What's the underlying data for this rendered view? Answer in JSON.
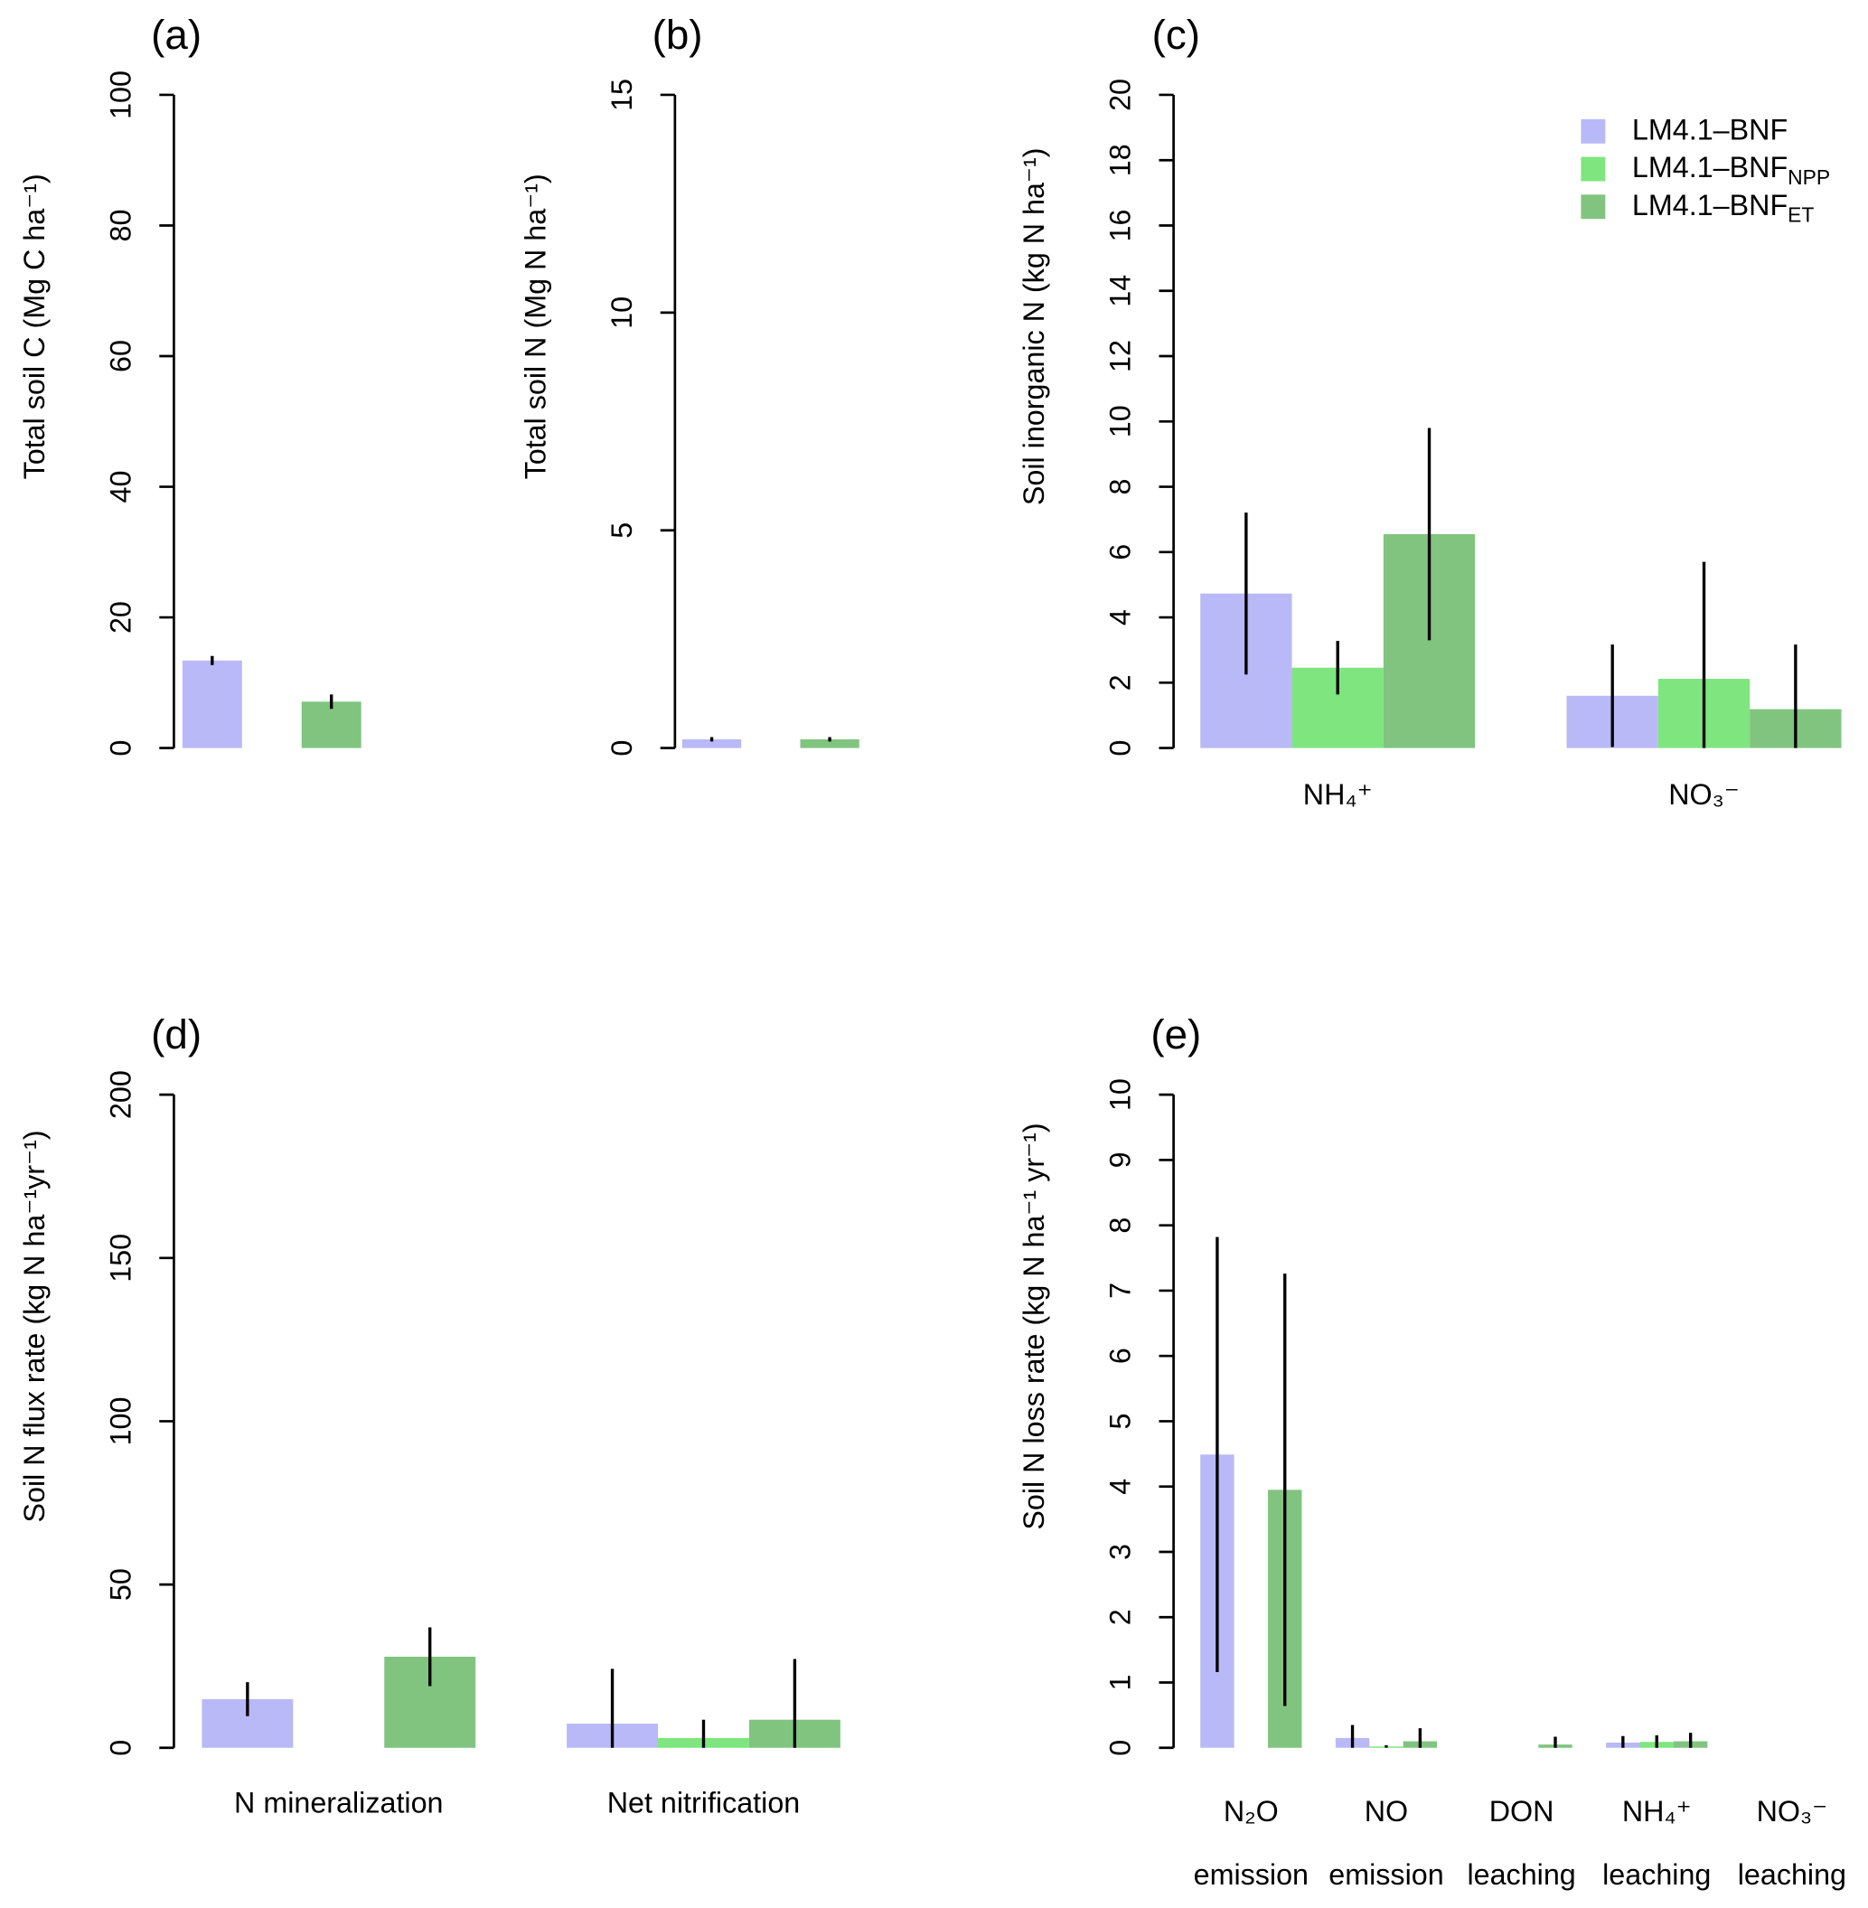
{
  "chart_data": [
    {
      "type": "bar",
      "title": "(a)",
      "ylabel": "Total soil C (Mg C ha⁻¹)",
      "categories": [
        null
      ],
      "ylim": [
        0,
        100
      ],
      "yticks": [
        0,
        20,
        40,
        60,
        80,
        100
      ],
      "series": [
        {
          "color": "#b9b9f7",
          "values": [
            13.4
          ],
          "errors": [
            0.7
          ]
        },
        {
          "color": "#7fe57f",
          "values": [
            0
          ],
          "errors": [
            0
          ]
        },
        {
          "color": "#80c480",
          "values": [
            7.1
          ],
          "errors": [
            1.1
          ]
        }
      ]
    },
    {
      "type": "bar",
      "title": "(b)",
      "ylabel": "Total soil N (Mg N ha⁻¹)",
      "categories": [
        null
      ],
      "ylim": [
        0,
        15
      ],
      "yticks": [
        0,
        5,
        10,
        15
      ],
      "series": [
        {
          "color": "#b9b9f7",
          "values": [
            0.2
          ],
          "errors": [
            0.05
          ]
        },
        {
          "color": "#7fe57f",
          "values": [
            0
          ],
          "errors": [
            0
          ]
        },
        {
          "color": "#80c480",
          "values": [
            0.2
          ],
          "errors": [
            0.05
          ]
        }
      ]
    },
    {
      "type": "bar",
      "title": "(c)",
      "ylabel": "Soil inorganic N (kg N ha⁻¹)",
      "categories": [
        "NH₄⁺",
        "NO₃⁻"
      ],
      "ylim": [
        0,
        20
      ],
      "yticks": [
        0,
        2,
        4,
        6,
        8,
        10,
        12,
        14,
        16,
        18,
        20
      ],
      "legend": "top-right",
      "series": [
        {
          "name": "LM4.1–BNF",
          "color": "#b9b9f7",
          "values": [
            4.73,
            1.6
          ],
          "errors": [
            2.48,
            1.57
          ]
        },
        {
          "name": "LM4.1–BNF",
          "subscript": "NPP",
          "color": "#7fe57f",
          "values": [
            2.46,
            2.12
          ],
          "errors": [
            0.82,
            3.58
          ]
        },
        {
          "name": "LM4.1–BNF",
          "subscript": "ET",
          "color": "#80c480",
          "values": [
            6.55,
            1.19
          ],
          "errors": [
            3.25,
            1.98
          ]
        }
      ]
    },
    {
      "type": "bar",
      "title": "(d)",
      "ylabel": "Soil N flux rate (kg N ha⁻¹yr⁻¹)",
      "categories": [
        "N mineralization",
        "Net nitrification"
      ],
      "ylim": [
        0,
        200
      ],
      "yticks": [
        0,
        50,
        100,
        150,
        200
      ],
      "series": [
        {
          "color": "#b9b9f7",
          "values": [
            14.9,
            7.4
          ],
          "errors": [
            5.2,
            16.8
          ]
        },
        {
          "color": "#7fe57f",
          "values": [
            0,
            3
          ],
          "errors": [
            0,
            5.6
          ]
        },
        {
          "color": "#80c480",
          "values": [
            27.9,
            8.6
          ],
          "errors": [
            9,
            18.6
          ]
        }
      ]
    },
    {
      "type": "bar",
      "title": "(e)",
      "ylabel": "Soil N loss rate (kg N ha⁻¹ yr⁻¹)",
      "categories": [
        [
          "N₂O",
          "emission"
        ],
        [
          "NO",
          "emission"
        ],
        [
          "DON",
          "leaching"
        ],
        [
          "NH₄⁺",
          "leaching"
        ],
        [
          "NO₃⁻",
          "leaching"
        ]
      ],
      "ylim": [
        0,
        10
      ],
      "yticks": [
        0,
        1,
        2,
        3,
        4,
        5,
        6,
        7,
        8,
        9,
        10
      ],
      "series": [
        {
          "color": "#b9b9f7",
          "values": [
            4.49,
            0.15,
            0,
            0.08,
            0
          ],
          "errors": [
            3.33,
            0.2,
            0,
            0.1,
            0
          ]
        },
        {
          "color": "#7fe57f",
          "values": [
            0,
            0.02,
            0,
            0.09,
            0
          ],
          "errors": [
            0,
            0.02,
            0,
            0.1,
            0
          ]
        },
        {
          "color": "#80c480",
          "values": [
            3.95,
            0.1,
            0.05,
            0.1,
            0
          ],
          "errors": [
            3.31,
            0.2,
            0.12,
            0.13,
            0
          ]
        }
      ]
    }
  ]
}
